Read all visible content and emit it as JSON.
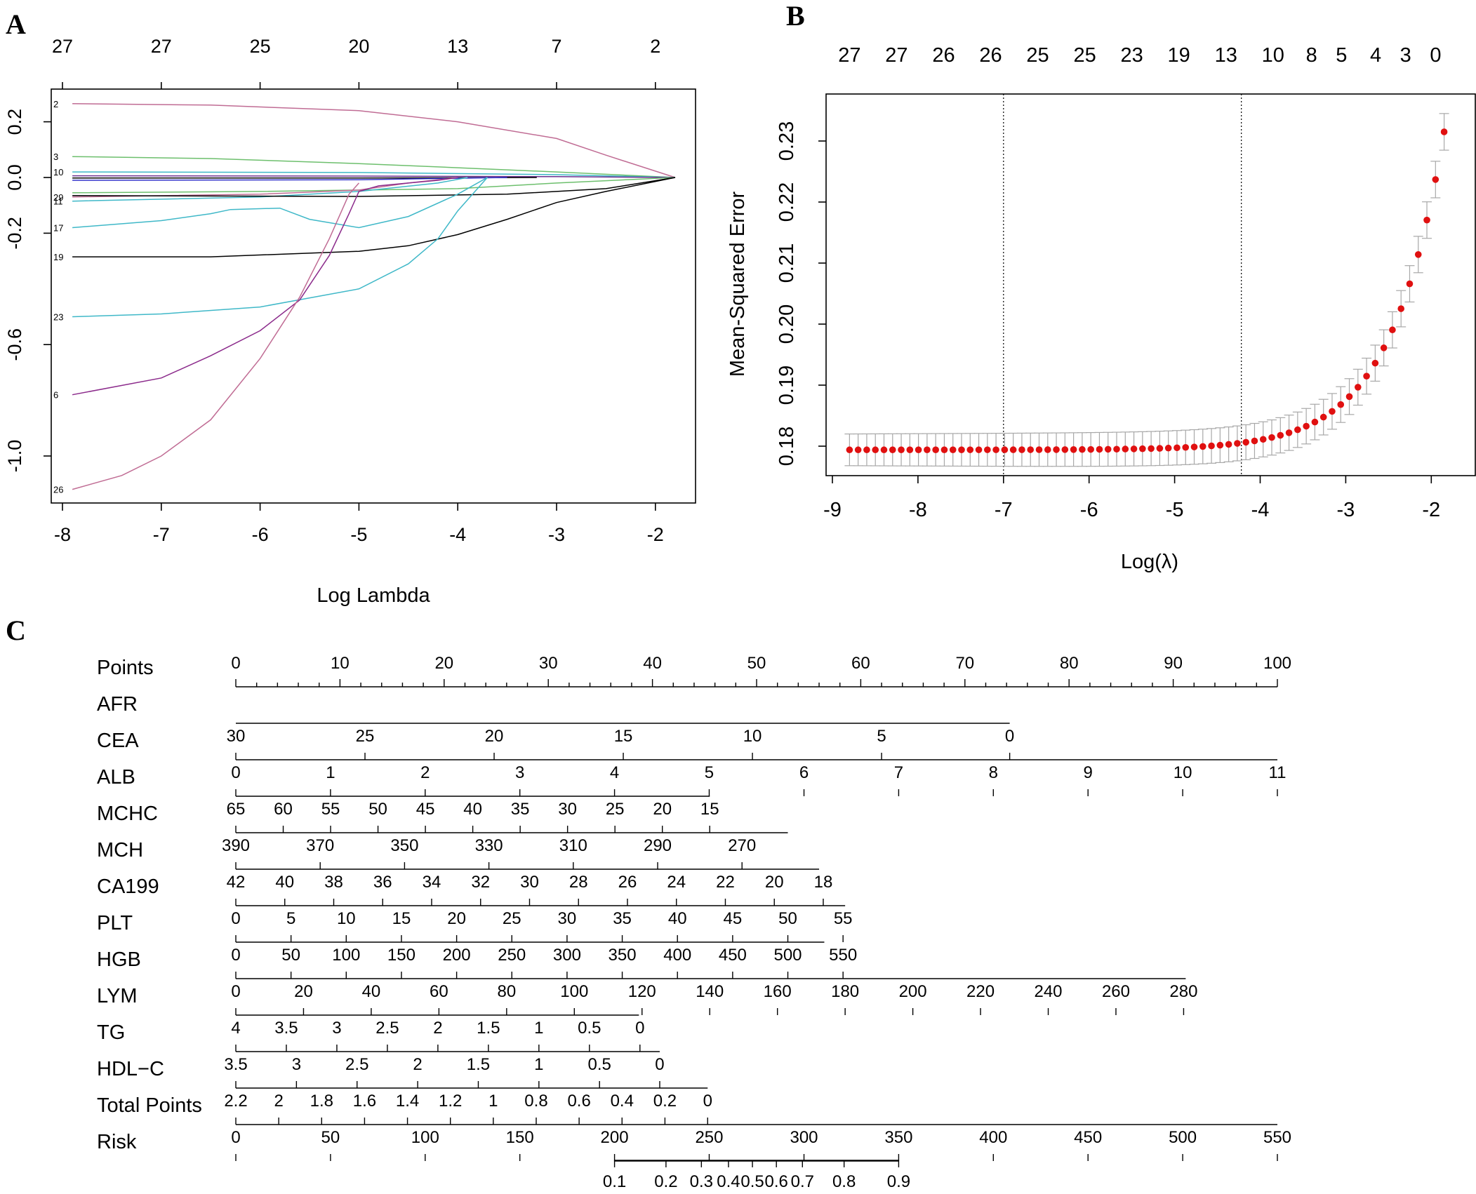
{
  "panels": {
    "a": "A",
    "b": "B",
    "c": "C"
  },
  "chart_data": [
    {
      "panel": "A",
      "type": "line",
      "title": "",
      "xlabel": "Log Lambda",
      "ylabel": "",
      "xlim": [
        -8.1,
        -1.6
      ],
      "ylim": [
        -1.17,
        0.32
      ],
      "x_ticks": [
        -8,
        -7,
        -6,
        -5,
        -4,
        -3,
        -2
      ],
      "y_ticks": [
        0.2,
        0.0,
        -0.2,
        -0.6,
        -1.0
      ],
      "y_tick_labels": [
        "0.2",
        "0.0",
        "-0.2",
        "-0.6",
        "-1.0"
      ],
      "top_axis": {
        "positions": [
          -8,
          -7,
          -6,
          -5,
          -4,
          -3,
          -2
        ],
        "labels": [
          "27",
          "27",
          "25",
          "20",
          "13",
          "7",
          "2"
        ]
      },
      "series": [
        {
          "label": "2",
          "color": "#c06c94",
          "x": [
            -7.9,
            -6.5,
            -5.0,
            -4.0,
            -3.0,
            -2.5,
            -1.8
          ],
          "y": [
            0.265,
            0.26,
            0.24,
            0.2,
            0.14,
            0.08,
            0.0
          ]
        },
        {
          "label": "3",
          "color": "#6dbf6d",
          "x": [
            -7.9,
            -6.5,
            -5.0,
            -4.0,
            -3.0,
            -1.8
          ],
          "y": [
            0.075,
            0.068,
            0.05,
            0.035,
            0.02,
            0.0
          ]
        },
        {
          "label": "10",
          "color": "#3fb8c8",
          "x": [
            -7.9,
            -5.0,
            -3.0,
            -1.8
          ],
          "y": [
            0.02,
            0.018,
            0.01,
            0.0
          ]
        },
        {
          "label": "",
          "color": "#6b2f8f",
          "x": [
            -7.9,
            -5.0,
            -3.0,
            -1.8
          ],
          "y": [
            0.006,
            0.005,
            0.003,
            0.0
          ]
        },
        {
          "label": "",
          "color": "#000000",
          "x": [
            -7.9,
            -5.0,
            -4.0,
            -3.2
          ],
          "y": [
            -0.002,
            -0.002,
            -0.001,
            0.0
          ]
        },
        {
          "label": "",
          "color": "#3333cc",
          "x": [
            -7.9,
            -5.0,
            -3.5
          ],
          "y": [
            -0.01,
            -0.008,
            0.0
          ]
        },
        {
          "label": "",
          "color": "#6dbf6d",
          "x": [
            -7.9,
            -6.0,
            -4.0,
            -3.0,
            -1.8
          ],
          "y": [
            -0.055,
            -0.05,
            -0.04,
            -0.02,
            0.0
          ]
        },
        {
          "label": "29",
          "color": "#c06c94",
          "x": [
            -7.9,
            -6.0,
            -5.0,
            -4.5,
            -4.0
          ],
          "y": [
            -0.07,
            -0.06,
            -0.045,
            -0.02,
            0.0
          ]
        },
        {
          "label": "11",
          "color": "#3fb8c8",
          "x": [
            -7.9,
            -6.0,
            -5.0,
            -4.2,
            -3.9
          ],
          "y": [
            -0.085,
            -0.07,
            -0.05,
            -0.02,
            0.0
          ]
        },
        {
          "label": "",
          "color": "#000000",
          "x": [
            -7.9,
            -5.0,
            -3.5,
            -2.5,
            -1.8
          ],
          "y": [
            -0.065,
            -0.068,
            -0.06,
            -0.04,
            0.0
          ]
        },
        {
          "label": "17",
          "color": "#3fb8c8",
          "x": [
            -7.9,
            -7.0,
            -6.5,
            -6.3,
            -5.8,
            -5.5,
            -5.0,
            -4.5,
            -4.0,
            -3.7
          ],
          "y": [
            -0.18,
            -0.155,
            -0.13,
            -0.115,
            -0.11,
            -0.15,
            -0.18,
            -0.14,
            -0.06,
            0.0
          ]
        },
        {
          "label": "19",
          "color": "#000000",
          "x": [
            -7.9,
            -6.5,
            -5.0,
            -4.5,
            -4.0,
            -3.5,
            -3.0,
            -2.5,
            -1.8
          ],
          "y": [
            -0.285,
            -0.285,
            -0.265,
            -0.245,
            -0.205,
            -0.15,
            -0.09,
            -0.05,
            0.0
          ]
        },
        {
          "label": "23",
          "color": "#3fb8c8",
          "x": [
            -7.9,
            -7.0,
            -6.0,
            -5.0,
            -4.5,
            -4.2,
            -4.0,
            -3.7
          ],
          "y": [
            -0.5,
            -0.49,
            -0.465,
            -0.4,
            -0.31,
            -0.22,
            -0.12,
            0.0
          ]
        },
        {
          "label": "6",
          "color": "#8b2a8b",
          "x": [
            -7.9,
            -7.0,
            -6.5,
            -6.0,
            -5.6,
            -5.3,
            -5.1,
            -5.0,
            -4.8,
            -4.5,
            -4.2,
            -4.0
          ],
          "y": [
            -0.78,
            -0.72,
            -0.64,
            -0.55,
            -0.44,
            -0.28,
            -0.13,
            -0.05,
            -0.03,
            -0.02,
            -0.01,
            0.0
          ]
        },
        {
          "label": "26",
          "color": "#c06c94",
          "x": [
            -7.9,
            -7.4,
            -7.0,
            -6.5,
            -6.0,
            -5.6,
            -5.3,
            -5.1,
            -5.0
          ],
          "y": [
            -1.12,
            -1.07,
            -1.0,
            -0.87,
            -0.65,
            -0.43,
            -0.22,
            -0.06,
            -0.02
          ]
        }
      ]
    },
    {
      "panel": "B",
      "type": "scatter",
      "title": "",
      "xlabel": "Log(λ)",
      "ylabel": "Mean-Squared Error",
      "xlim": [
        -9.0,
        -1.7
      ],
      "ylim": [
        0.1755,
        0.2355
      ],
      "x_ticks": [
        -9,
        -8,
        -7,
        -6,
        -5,
        -4,
        -3,
        -2
      ],
      "y_ticks": [
        0.18,
        0.19,
        0.2,
        0.21,
        0.22,
        0.23
      ],
      "y_tick_labels": [
        "0.18",
        "0.19",
        "0.20",
        "0.21",
        "0.22",
        "0.23"
      ],
      "top_axis": {
        "positions": [
          -8.8,
          -8.25,
          -7.7,
          -7.15,
          -6.6,
          -6.05,
          -5.5,
          -4.95,
          -4.4,
          -3.85,
          -3.4,
          -3.05,
          -2.65,
          -2.3,
          -1.95
        ],
        "labels": [
          "27",
          "27",
          "26",
          "26",
          "25",
          "25",
          "23",
          "19",
          "13",
          "10",
          "8",
          "5",
          "4",
          "3",
          "0"
        ]
      },
      "vlines": [
        -7.0,
        -4.22
      ],
      "mse_curve": {
        "lambda_min": -8.8,
        "lambda_max": -1.85,
        "n_points": 70,
        "mse_floor": 0.1794,
        "mse_max": 0.2315,
        "se_low": 0.0026,
        "se_high": 0.003
      },
      "point_color": "#e01010",
      "errorbar_color": "#a8a8a8"
    },
    {
      "panel": "C",
      "type": "nomogram",
      "rows": [
        {
          "name": "Points",
          "ticks": [
            "0",
            "10",
            "20",
            "30",
            "40",
            "50",
            "60",
            "70",
            "80",
            "90",
            "100"
          ],
          "tick_pos": [
            0,
            10,
            20,
            30,
            40,
            50,
            60,
            70,
            80,
            90,
            100
          ],
          "line": [
            0,
            100
          ],
          "minor_step": 2
        },
        {
          "name": "AFR",
          "ticks": [],
          "tick_pos": [],
          "line": [
            0,
            74.3
          ],
          "minor_step": 0
        },
        {
          "name": "CEA",
          "ticks": [
            "30",
            "25",
            "20",
            "15",
            "10",
            "5",
            "0"
          ],
          "tick_pos": [
            0,
            12.4,
            24.8,
            37.2,
            49.6,
            62.0,
            74.3
          ],
          "line": [
            0,
            100
          ],
          "minor_step": 0
        },
        {
          "name": "ALB",
          "ticks": [
            "0",
            "1",
            "2",
            "3",
            "4",
            "5",
            "6",
            "7",
            "8",
            "9",
            "10",
            "11"
          ],
          "tick_pos": [
            0,
            9.09,
            18.18,
            27.27,
            36.36,
            45.45,
            54.55,
            63.64,
            72.73,
            81.82,
            90.91,
            100
          ],
          "line": [
            0,
            45.5
          ],
          "minor_step": 0
        },
        {
          "name": "MCHC",
          "ticks": [
            "65",
            "60",
            "55",
            "50",
            "45",
            "40",
            "35",
            "30",
            "25",
            "20",
            "15"
          ],
          "tick_pos": [
            0,
            4.55,
            9.1,
            13.65,
            18.2,
            22.75,
            27.3,
            31.85,
            36.4,
            40.95,
            45.5
          ],
          "line": [
            0,
            53
          ],
          "minor_step": 0
        },
        {
          "name": "MCH",
          "ticks": [
            "390",
            "370",
            "350",
            "330",
            "310",
            "290",
            "270"
          ],
          "tick_pos": [
            0,
            8.1,
            16.2,
            24.3,
            32.4,
            40.5,
            48.6
          ],
          "line": [
            0,
            56
          ],
          "minor_step": 0
        },
        {
          "name": "CA199",
          "ticks": [
            "42",
            "40",
            "38",
            "36",
            "34",
            "32",
            "30",
            "28",
            "26",
            "24",
            "22",
            "20",
            "18"
          ],
          "tick_pos": [
            0,
            4.7,
            9.4,
            14.1,
            18.8,
            23.5,
            28.2,
            32.9,
            37.6,
            42.3,
            47.0,
            51.7,
            56.4
          ],
          "line": [
            0,
            58.5
          ],
          "minor_step": 0
        },
        {
          "name": "PLT",
          "ticks": [
            "0",
            "5",
            "10",
            "15",
            "20",
            "25",
            "30",
            "35",
            "40",
            "45",
            "50",
            "55"
          ],
          "tick_pos": [
            0,
            5.3,
            10.6,
            15.9,
            21.2,
            26.5,
            31.8,
            37.1,
            42.4,
            47.7,
            53.0,
            58.3
          ],
          "line": [
            0,
            56.5
          ],
          "minor_step": 0
        },
        {
          "name": "HGB",
          "ticks": [
            "0",
            "50",
            "100",
            "150",
            "200",
            "250",
            "300",
            "350",
            "400",
            "450",
            "500",
            "550"
          ],
          "tick_pos": [
            0,
            5.3,
            10.6,
            15.9,
            21.2,
            26.5,
            31.8,
            37.1,
            42.4,
            47.7,
            53.0,
            58.3
          ],
          "line": [
            0,
            91.2
          ],
          "minor_step": 0
        },
        {
          "name": "LYM",
          "ticks": [
            "0",
            "20",
            "40",
            "60",
            "80",
            "100",
            "120",
            "140",
            "160",
            "180",
            "200",
            "220",
            "240",
            "260",
            "280"
          ],
          "tick_pos": [
            0,
            6.5,
            13,
            19.5,
            26,
            32.5,
            39,
            45.5,
            52,
            58.5,
            65,
            71.5,
            78,
            84.5,
            91
          ],
          "line": [
            0,
            38.7
          ],
          "minor_step": 0
        },
        {
          "name": "TG",
          "ticks": [
            "4",
            "3.5",
            "3",
            "2.5",
            "2",
            "1.5",
            "1",
            "0.5",
            "0"
          ],
          "tick_pos": [
            0,
            4.85,
            9.7,
            14.55,
            19.4,
            24.25,
            29.1,
            33.95,
            38.8
          ],
          "line": [
            0,
            40.7
          ],
          "minor_step": 0
        },
        {
          "name": "HDL−C",
          "ticks": [
            "3.5",
            "3",
            "2.5",
            "2",
            "1.5",
            "1",
            "0.5",
            "0"
          ],
          "tick_pos": [
            0,
            5.82,
            11.64,
            17.46,
            23.28,
            29.1,
            34.92,
            40.7
          ],
          "line": [
            0,
            45.3
          ],
          "minor_step": 0
        },
        {
          "name": "Total Points",
          "ticks": [
            "2.2",
            "2",
            "1.8",
            "1.6",
            "1.4",
            "1.2",
            "1",
            "0.8",
            "0.6",
            "0.4",
            "0.2",
            "0"
          ],
          "tick_pos": [
            0,
            4.12,
            8.24,
            12.36,
            16.48,
            20.6,
            24.72,
            28.84,
            32.96,
            37.08,
            41.2,
            45.3
          ],
          "line": [
            0,
            100
          ],
          "minor_step": 0
        },
        {
          "name": "Risk",
          "ticks": [
            "0",
            "50",
            "100",
            "150",
            "200",
            "250",
            "300",
            "350",
            "400",
            "450",
            "500",
            "550"
          ],
          "tick_pos": [
            0,
            9.09,
            18.18,
            27.27,
            36.36,
            45.45,
            54.55,
            63.64,
            72.73,
            81.82,
            90.91,
            100
          ],
          "line": [
            36.36,
            63.64
          ],
          "minor_step": 0
        },
        {
          "name": "",
          "ticks": [
            "0.1",
            "0.2",
            "0.3",
            "0.4",
            "0.5",
            "0.6",
            "0.7",
            "0.8",
            "0.9"
          ],
          "tick_pos": [
            36.36,
            41.3,
            44.7,
            47.3,
            49.6,
            51.9,
            54.4,
            58.4,
            63.64
          ],
          "line": [
            36.36,
            63.64
          ],
          "minor_step": 0
        }
      ]
    }
  ]
}
